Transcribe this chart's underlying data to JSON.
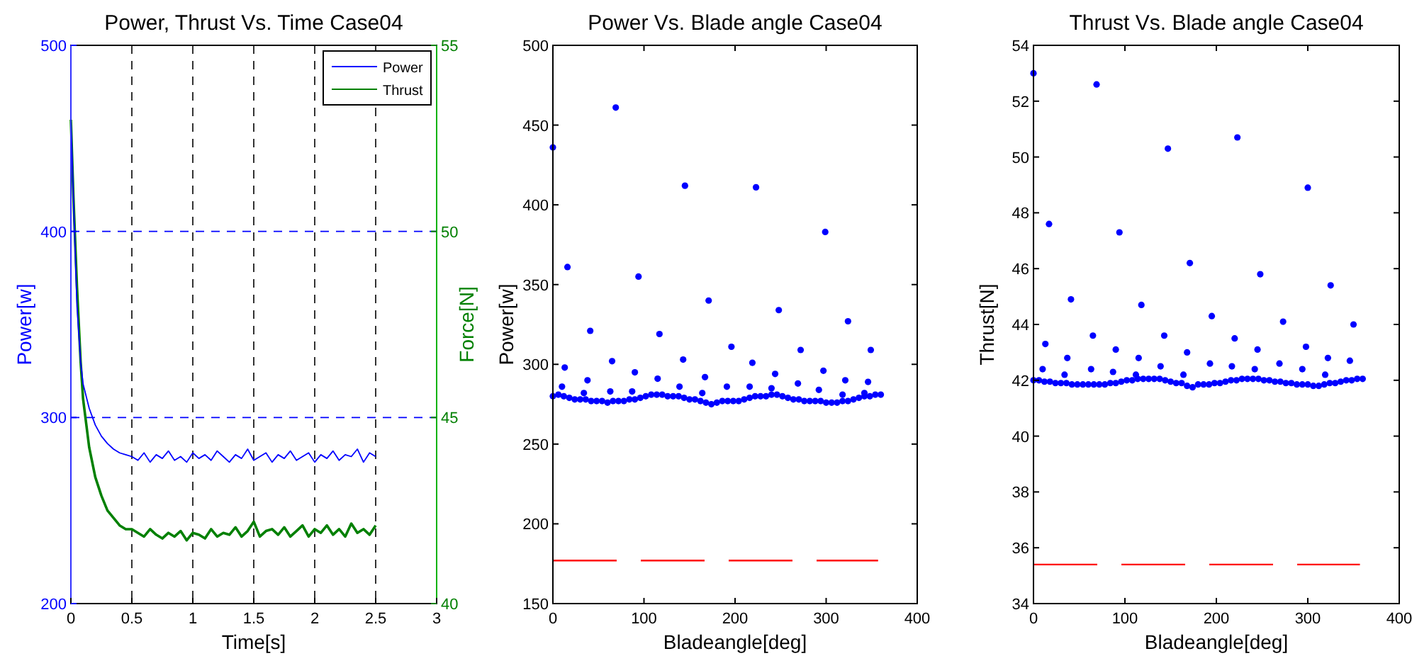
{
  "chart_data": [
    {
      "type": "line",
      "title": "Power, Thrust Vs. Time Case04",
      "xlabel": "Time[s]",
      "ylabel": "Power[w]",
      "y2label": "Force[N]",
      "xlim": [
        0,
        3
      ],
      "xticks": [
        0,
        0.5,
        1,
        1.5,
        2,
        2.5,
        3
      ],
      "ylim": [
        200,
        500
      ],
      "yticks": [
        200,
        300,
        400,
        500
      ],
      "y2lim": [
        40,
        55
      ],
      "y2ticks": [
        40,
        45,
        50,
        55
      ],
      "grid": true,
      "legend": "top right",
      "x": [
        0,
        0.02,
        0.05,
        0.08,
        0.1,
        0.15,
        0.2,
        0.25,
        0.3,
        0.35,
        0.4,
        0.45,
        0.5,
        0.55,
        0.6,
        0.65,
        0.7,
        0.75,
        0.8,
        0.85,
        0.9,
        0.95,
        1,
        1.05,
        1.1,
        1.15,
        1.2,
        1.25,
        1.3,
        1.35,
        1.4,
        1.45,
        1.5,
        1.55,
        1.6,
        1.65,
        1.7,
        1.75,
        1.8,
        1.85,
        1.9,
        1.95,
        2,
        2.05,
        2.1,
        2.15,
        2.2,
        2.25,
        2.3,
        2.35,
        2.4,
        2.45,
        2.5
      ],
      "series": [
        {
          "name": "Power",
          "color": "#0000ff",
          "values": [
            460,
            420,
            360,
            330,
            318,
            305,
            296,
            290,
            286,
            283,
            281,
            280,
            279,
            277,
            281,
            276,
            280,
            278,
            282,
            277,
            279,
            276,
            281,
            278,
            280,
            277,
            282,
            279,
            276,
            280,
            278,
            283,
            277,
            279,
            281,
            276,
            280,
            278,
            282,
            277,
            279,
            281,
            276,
            280,
            278,
            282,
            277,
            280,
            279,
            283,
            276,
            281,
            279
          ]
        },
        {
          "name": "Thrust",
          "color": "#008000",
          "axis": "y2",
          "values": [
            53,
            51,
            48.5,
            46.5,
            45.5,
            44.2,
            43.4,
            42.9,
            42.5,
            42.3,
            42.1,
            42.0,
            42.0,
            41.9,
            41.8,
            42.0,
            41.85,
            41.75,
            41.9,
            41.8,
            41.95,
            41.7,
            41.9,
            41.85,
            41.75,
            42.0,
            41.8,
            41.9,
            41.85,
            42.05,
            41.8,
            41.95,
            42.2,
            41.8,
            41.95,
            42.0,
            41.85,
            42.05,
            41.8,
            41.95,
            42.1,
            41.8,
            42.0,
            41.9,
            42.1,
            41.85,
            42.0,
            41.8,
            42.15,
            41.9,
            42.0,
            41.85,
            42.1
          ]
        }
      ]
    },
    {
      "type": "scatter",
      "title": "Power Vs. Blade angle Case04",
      "xlabel": "Bladeangle[deg]",
      "ylabel": "Power[w]",
      "xlim": [
        0,
        400
      ],
      "xticks": [
        0,
        100,
        200,
        300,
        400
      ],
      "ylim": [
        150,
        500
      ],
      "yticks": [
        150,
        200,
        250,
        300,
        350,
        400,
        450,
        500
      ],
      "series": [
        {
          "color": "#0000ff",
          "marker": "circle",
          "x": [
            0,
            6,
            12,
            18,
            24,
            30,
            36,
            42,
            48,
            54,
            60,
            66,
            72,
            78,
            84,
            90,
            96,
            102,
            108,
            114,
            120,
            126,
            132,
            138,
            144,
            150,
            156,
            162,
            168,
            174,
            180,
            186,
            192,
            198,
            204,
            210,
            216,
            222,
            228,
            234,
            240,
            246,
            252,
            258,
            264,
            270,
            276,
            282,
            288,
            294,
            300,
            306,
            312,
            318,
            324,
            330,
            336,
            342,
            348,
            354,
            360
          ],
          "values": [
            280,
            281,
            280,
            279,
            278,
            278,
            278,
            277,
            277,
            277,
            276,
            277,
            277,
            277,
            278,
            278,
            279,
            280,
            281,
            281,
            281,
            280,
            280,
            280,
            279,
            278,
            278,
            277,
            276,
            275,
            276,
            277,
            277,
            277,
            277,
            278,
            279,
            280,
            280,
            280,
            281,
            281,
            280,
            279,
            278,
            278,
            277,
            277,
            277,
            277,
            276,
            276,
            276,
            277,
            277,
            278,
            279,
            280,
            280,
            281,
            281
          ]
        },
        {
          "color": "#0000ff",
          "marker": "circle",
          "x": [
            0,
            69,
            16,
            94,
            41,
            117,
            13,
            65,
            90,
            115,
            145,
            143,
            171,
            167,
            223,
            196,
            219,
            248,
            244,
            299,
            272,
            297,
            324,
            321,
            349,
            346,
            10,
            34,
            38,
            63,
            87,
            139,
            164,
            191,
            216,
            240,
            269,
            292,
            318,
            342
          ],
          "values": [
            436,
            461,
            361,
            355,
            321,
            319,
            298,
            302,
            295,
            291,
            412,
            303,
            340,
            292,
            411,
            311,
            301,
            334,
            294,
            383,
            309,
            296,
            327,
            290,
            309,
            289,
            286,
            282,
            290,
            283,
            283,
            286,
            282,
            286,
            286,
            285,
            288,
            284,
            281,
            282
          ]
        },
        {
          "type": "line",
          "color": "#ff0000",
          "line_style": "dashed",
          "x": [
            0,
            357
          ],
          "values": [
            177,
            177
          ]
        }
      ]
    },
    {
      "type": "scatter",
      "title": "Thrust Vs. Blade angle Case04",
      "xlabel": "Bladeangle[deg]",
      "ylabel": "Thrust[N]",
      "xlim": [
        0,
        400
      ],
      "xticks": [
        0,
        100,
        200,
        300,
        400
      ],
      "ylim": [
        34,
        54
      ],
      "yticks": [
        34,
        36,
        38,
        40,
        42,
        44,
        46,
        48,
        50,
        52,
        54
      ],
      "series": [
        {
          "color": "#0000ff",
          "marker": "circle",
          "x": [
            0,
            6,
            12,
            18,
            24,
            30,
            36,
            42,
            48,
            54,
            60,
            66,
            72,
            78,
            84,
            90,
            96,
            102,
            108,
            114,
            120,
            126,
            132,
            138,
            144,
            150,
            156,
            162,
            168,
            174,
            180,
            186,
            192,
            198,
            204,
            210,
            216,
            222,
            228,
            234,
            240,
            246,
            252,
            258,
            264,
            270,
            276,
            282,
            288,
            294,
            300,
            306,
            312,
            318,
            324,
            330,
            336,
            342,
            348,
            354,
            360
          ],
          "values": [
            42.0,
            42.0,
            41.95,
            41.95,
            41.9,
            41.9,
            41.9,
            41.85,
            41.85,
            41.85,
            41.85,
            41.85,
            41.85,
            41.85,
            41.9,
            41.9,
            41.95,
            42.0,
            42.0,
            42.05,
            42.05,
            42.05,
            42.05,
            42.05,
            42.0,
            41.95,
            41.9,
            41.9,
            41.8,
            41.75,
            41.85,
            41.85,
            41.85,
            41.9,
            41.9,
            41.95,
            42.0,
            42.0,
            42.05,
            42.05,
            42.05,
            42.05,
            42.0,
            42.0,
            41.95,
            41.95,
            41.9,
            41.9,
            41.85,
            41.85,
            41.85,
            41.8,
            41.8,
            41.85,
            41.9,
            41.9,
            41.95,
            42.0,
            42.0,
            42.05,
            42.05
          ]
        },
        {
          "color": "#0000ff",
          "marker": "circle",
          "x": [
            0,
            69,
            17,
            94,
            41,
            118,
            13,
            65,
            90,
            115,
            147,
            143,
            171,
            168,
            223,
            195,
            193,
            220,
            217,
            248,
            245,
            242,
            273,
            269,
            300,
            298,
            294,
            325,
            322,
            350,
            346,
            10,
            34,
            37,
            63,
            87,
            112,
            139,
            164,
            319
          ],
          "values": [
            53.0,
            52.6,
            47.6,
            47.3,
            44.9,
            44.7,
            43.3,
            43.6,
            43.1,
            42.8,
            50.3,
            43.6,
            46.2,
            43.0,
            50.7,
            44.3,
            42.6,
            43.5,
            42.5,
            45.8,
            43.1,
            42.4,
            44.1,
            42.6,
            48.9,
            43.2,
            42.4,
            45.4,
            42.8,
            44.0,
            42.7,
            42.4,
            42.2,
            42.8,
            42.4,
            42.3,
            42.2,
            42.5,
            42.2,
            42.2
          ]
        },
        {
          "type": "line",
          "color": "#ff0000",
          "line_style": "dashed",
          "x": [
            0,
            357
          ],
          "values": [
            35.4,
            35.4
          ]
        }
      ]
    }
  ]
}
